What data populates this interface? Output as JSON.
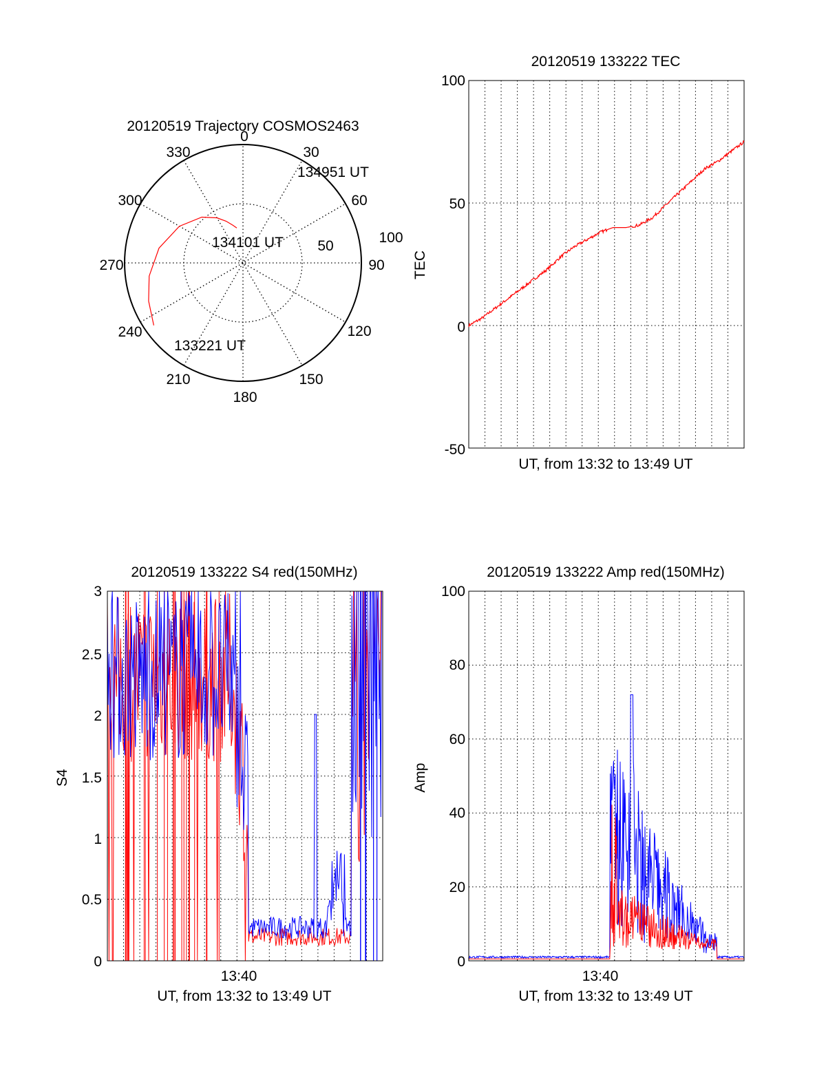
{
  "colors": {
    "red": "#ff0000",
    "blue": "#0000ff",
    "axis": "#000000",
    "grid": "#000000"
  },
  "chart_data": [
    {
      "id": "trajectory",
      "type": "polar",
      "title": "20120519 Trajectory COSMOS2463",
      "angle_labels": [
        "0",
        "30",
        "60",
        "90",
        "120",
        "150",
        "180",
        "210",
        "240",
        "270",
        "300",
        "330"
      ],
      "radial_labels": [
        "50",
        "100"
      ],
      "rlim": [
        0,
        100
      ],
      "grid": true,
      "series": [
        {
          "color": "red",
          "path": [
            [
              235,
              92
            ],
            [
              248,
              86
            ],
            [
              262,
              80
            ],
            [
              280,
              72
            ],
            [
              300,
              62
            ],
            [
              318,
              52
            ],
            [
              330,
              44
            ],
            [
              338,
              38
            ],
            [
              345,
              33
            ],
            [
              350,
              30
            ]
          ]
        }
      ],
      "annotations": [
        "134951 UT",
        "134101 UT",
        "133221 UT"
      ]
    },
    {
      "id": "tec",
      "type": "line",
      "title": "20120519 133222 TEC",
      "xlabel": "UT, from 13:32 to 13:49 UT",
      "ylabel": "TEC",
      "ylim": [
        -50,
        100
      ],
      "yticks": [
        "100",
        "50",
        "0",
        "-50"
      ],
      "grid": true,
      "series": [
        {
          "color": "red",
          "points": [
            [
              0,
              0
            ],
            [
              1,
              3
            ],
            [
              2,
              7
            ],
            [
              3,
              11
            ],
            [
              4,
              15
            ],
            [
              5,
              19
            ],
            [
              6,
              23
            ],
            [
              7,
              28
            ],
            [
              8,
              32
            ],
            [
              9,
              35
            ],
            [
              10,
              38
            ],
            [
              11,
              40
            ],
            [
              12,
              40
            ],
            [
              13,
              41
            ],
            [
              14,
              44
            ],
            [
              15,
              49
            ],
            [
              16,
              54
            ],
            [
              17,
              59
            ],
            [
              18,
              64
            ],
            [
              19,
              67
            ],
            [
              20,
              71
            ],
            [
              21,
              75
            ]
          ]
        }
      ]
    },
    {
      "id": "s4",
      "type": "line",
      "title": "20120519 133222 S4 red(150MHz)",
      "xlabel": "UT, from 13:32 to 13:49 UT",
      "ylabel": "S4",
      "ylim": [
        0,
        3
      ],
      "yticks": [
        "3",
        "2.5",
        "2",
        "1.5",
        "1",
        "0.5",
        "0"
      ],
      "xtick_label": "13:40",
      "grid": true,
      "series": [
        {
          "color": "red"
        },
        {
          "color": "blue"
        }
      ]
    },
    {
      "id": "amp",
      "type": "line",
      "title": "20120519 133222 Amp red(150MHz)",
      "xlabel": "UT, from 13:32 to 13:49 UT",
      "ylabel": "Amp",
      "ylim": [
        0,
        100
      ],
      "yticks": [
        "100",
        "80",
        "60",
        "40",
        "20",
        "0"
      ],
      "xtick_label": "13:40",
      "grid": true,
      "series": [
        {
          "color": "red"
        },
        {
          "color": "blue"
        }
      ]
    }
  ]
}
